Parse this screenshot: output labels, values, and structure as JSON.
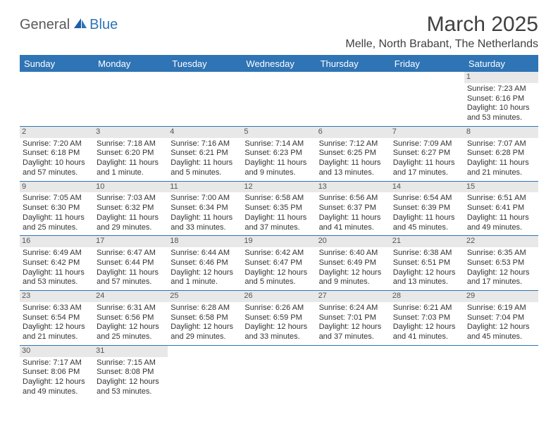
{
  "logo": {
    "general": "General",
    "blue": "Blue"
  },
  "title": "March 2025",
  "location": "Melle, North Brabant, The Netherlands",
  "colors": {
    "accent": "#2f74b5",
    "header_text": "#ffffff",
    "daynum_bg": "#e8e8e8",
    "text": "#333333",
    "title_text": "#404040"
  },
  "day_headers": [
    "Sunday",
    "Monday",
    "Tuesday",
    "Wednesday",
    "Thursday",
    "Friday",
    "Saturday"
  ],
  "weeks": [
    [
      null,
      null,
      null,
      null,
      null,
      null,
      {
        "n": "1",
        "sr": "Sunrise: 7:23 AM",
        "ss": "Sunset: 6:16 PM",
        "d1": "Daylight: 10 hours",
        "d2": "and 53 minutes."
      }
    ],
    [
      {
        "n": "2",
        "sr": "Sunrise: 7:20 AM",
        "ss": "Sunset: 6:18 PM",
        "d1": "Daylight: 10 hours",
        "d2": "and 57 minutes."
      },
      {
        "n": "3",
        "sr": "Sunrise: 7:18 AM",
        "ss": "Sunset: 6:20 PM",
        "d1": "Daylight: 11 hours",
        "d2": "and 1 minute."
      },
      {
        "n": "4",
        "sr": "Sunrise: 7:16 AM",
        "ss": "Sunset: 6:21 PM",
        "d1": "Daylight: 11 hours",
        "d2": "and 5 minutes."
      },
      {
        "n": "5",
        "sr": "Sunrise: 7:14 AM",
        "ss": "Sunset: 6:23 PM",
        "d1": "Daylight: 11 hours",
        "d2": "and 9 minutes."
      },
      {
        "n": "6",
        "sr": "Sunrise: 7:12 AM",
        "ss": "Sunset: 6:25 PM",
        "d1": "Daylight: 11 hours",
        "d2": "and 13 minutes."
      },
      {
        "n": "7",
        "sr": "Sunrise: 7:09 AM",
        "ss": "Sunset: 6:27 PM",
        "d1": "Daylight: 11 hours",
        "d2": "and 17 minutes."
      },
      {
        "n": "8",
        "sr": "Sunrise: 7:07 AM",
        "ss": "Sunset: 6:28 PM",
        "d1": "Daylight: 11 hours",
        "d2": "and 21 minutes."
      }
    ],
    [
      {
        "n": "9",
        "sr": "Sunrise: 7:05 AM",
        "ss": "Sunset: 6:30 PM",
        "d1": "Daylight: 11 hours",
        "d2": "and 25 minutes."
      },
      {
        "n": "10",
        "sr": "Sunrise: 7:03 AM",
        "ss": "Sunset: 6:32 PM",
        "d1": "Daylight: 11 hours",
        "d2": "and 29 minutes."
      },
      {
        "n": "11",
        "sr": "Sunrise: 7:00 AM",
        "ss": "Sunset: 6:34 PM",
        "d1": "Daylight: 11 hours",
        "d2": "and 33 minutes."
      },
      {
        "n": "12",
        "sr": "Sunrise: 6:58 AM",
        "ss": "Sunset: 6:35 PM",
        "d1": "Daylight: 11 hours",
        "d2": "and 37 minutes."
      },
      {
        "n": "13",
        "sr": "Sunrise: 6:56 AM",
        "ss": "Sunset: 6:37 PM",
        "d1": "Daylight: 11 hours",
        "d2": "and 41 minutes."
      },
      {
        "n": "14",
        "sr": "Sunrise: 6:54 AM",
        "ss": "Sunset: 6:39 PM",
        "d1": "Daylight: 11 hours",
        "d2": "and 45 minutes."
      },
      {
        "n": "15",
        "sr": "Sunrise: 6:51 AM",
        "ss": "Sunset: 6:41 PM",
        "d1": "Daylight: 11 hours",
        "d2": "and 49 minutes."
      }
    ],
    [
      {
        "n": "16",
        "sr": "Sunrise: 6:49 AM",
        "ss": "Sunset: 6:42 PM",
        "d1": "Daylight: 11 hours",
        "d2": "and 53 minutes."
      },
      {
        "n": "17",
        "sr": "Sunrise: 6:47 AM",
        "ss": "Sunset: 6:44 PM",
        "d1": "Daylight: 11 hours",
        "d2": "and 57 minutes."
      },
      {
        "n": "18",
        "sr": "Sunrise: 6:44 AM",
        "ss": "Sunset: 6:46 PM",
        "d1": "Daylight: 12 hours",
        "d2": "and 1 minute."
      },
      {
        "n": "19",
        "sr": "Sunrise: 6:42 AM",
        "ss": "Sunset: 6:47 PM",
        "d1": "Daylight: 12 hours",
        "d2": "and 5 minutes."
      },
      {
        "n": "20",
        "sr": "Sunrise: 6:40 AM",
        "ss": "Sunset: 6:49 PM",
        "d1": "Daylight: 12 hours",
        "d2": "and 9 minutes."
      },
      {
        "n": "21",
        "sr": "Sunrise: 6:38 AM",
        "ss": "Sunset: 6:51 PM",
        "d1": "Daylight: 12 hours",
        "d2": "and 13 minutes."
      },
      {
        "n": "22",
        "sr": "Sunrise: 6:35 AM",
        "ss": "Sunset: 6:53 PM",
        "d1": "Daylight: 12 hours",
        "d2": "and 17 minutes."
      }
    ],
    [
      {
        "n": "23",
        "sr": "Sunrise: 6:33 AM",
        "ss": "Sunset: 6:54 PM",
        "d1": "Daylight: 12 hours",
        "d2": "and 21 minutes."
      },
      {
        "n": "24",
        "sr": "Sunrise: 6:31 AM",
        "ss": "Sunset: 6:56 PM",
        "d1": "Daylight: 12 hours",
        "d2": "and 25 minutes."
      },
      {
        "n": "25",
        "sr": "Sunrise: 6:28 AM",
        "ss": "Sunset: 6:58 PM",
        "d1": "Daylight: 12 hours",
        "d2": "and 29 minutes."
      },
      {
        "n": "26",
        "sr": "Sunrise: 6:26 AM",
        "ss": "Sunset: 6:59 PM",
        "d1": "Daylight: 12 hours",
        "d2": "and 33 minutes."
      },
      {
        "n": "27",
        "sr": "Sunrise: 6:24 AM",
        "ss": "Sunset: 7:01 PM",
        "d1": "Daylight: 12 hours",
        "d2": "and 37 minutes."
      },
      {
        "n": "28",
        "sr": "Sunrise: 6:21 AM",
        "ss": "Sunset: 7:03 PM",
        "d1": "Daylight: 12 hours",
        "d2": "and 41 minutes."
      },
      {
        "n": "29",
        "sr": "Sunrise: 6:19 AM",
        "ss": "Sunset: 7:04 PM",
        "d1": "Daylight: 12 hours",
        "d2": "and 45 minutes."
      }
    ],
    [
      {
        "n": "30",
        "sr": "Sunrise: 7:17 AM",
        "ss": "Sunset: 8:06 PM",
        "d1": "Daylight: 12 hours",
        "d2": "and 49 minutes."
      },
      {
        "n": "31",
        "sr": "Sunrise: 7:15 AM",
        "ss": "Sunset: 8:08 PM",
        "d1": "Daylight: 12 hours",
        "d2": "and 53 minutes."
      },
      null,
      null,
      null,
      null,
      null
    ]
  ]
}
